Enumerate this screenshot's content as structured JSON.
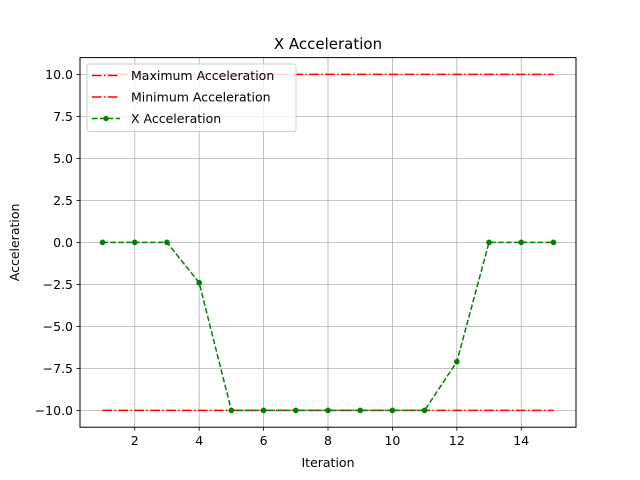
{
  "chart_data": {
    "type": "line",
    "title": "X Acceleration",
    "xlabel": "Iteration",
    "ylabel": "Acceleration",
    "xlim": [
      0.3,
      15.7
    ],
    "ylim": [
      -11.0,
      11.0
    ],
    "xticks": [
      2,
      4,
      6,
      8,
      10,
      12,
      14
    ],
    "yticks": [
      -10.0,
      -7.5,
      -5.0,
      -2.5,
      0.0,
      2.5,
      5.0,
      7.5,
      10.0
    ],
    "ytick_labels": [
      "−10.0",
      "−7.5",
      "−5.0",
      "−2.5",
      "0.0",
      "2.5",
      "5.0",
      "7.5",
      "10.0"
    ],
    "grid": true,
    "legend_position": "upper-left",
    "series": [
      {
        "name": "Maximum Acceleration",
        "color": "#ff0000",
        "style": "dashdot",
        "marker": "none",
        "x": [
          1,
          15
        ],
        "y": [
          10,
          10
        ]
      },
      {
        "name": "Minimum Acceleration",
        "color": "#ff0000",
        "style": "dashdot",
        "marker": "none",
        "x": [
          1,
          15
        ],
        "y": [
          -10,
          -10
        ]
      },
      {
        "name": "X Acceleration",
        "color": "#008000",
        "style": "dashed",
        "marker": "point",
        "x": [
          1,
          2,
          3,
          4,
          5,
          6,
          7,
          8,
          9,
          10,
          11,
          12,
          13,
          14,
          15
        ],
        "y": [
          0,
          0,
          0,
          -2.4,
          -10,
          -10,
          -10,
          -10,
          -10,
          -10,
          -10,
          -7.1,
          0,
          0,
          0
        ]
      }
    ]
  }
}
